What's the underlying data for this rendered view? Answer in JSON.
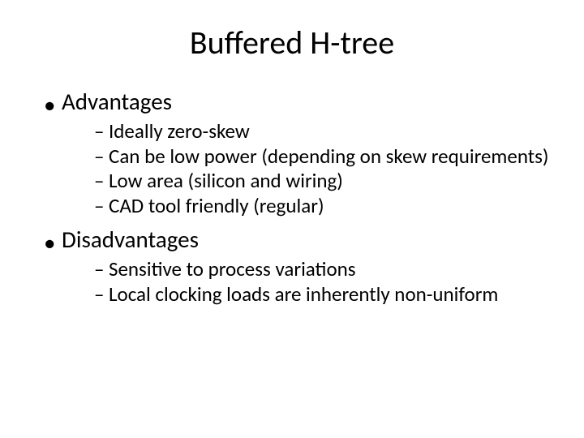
{
  "slide": {
    "title": "Buffered H-tree",
    "title_fontsize": 40,
    "title_color": "#000000",
    "background_color": "#ffffff",
    "text_color": "#000000",
    "l1_fontsize": 29,
    "l2_fontsize": 25,
    "l1_bullet": "•",
    "l2_bullet": "–",
    "sections": [
      {
        "label": "Advantages",
        "items": [
          "Ideally zero-skew",
          "Can be low power (depending on skew requirements)",
          "Low area (silicon and wiring)",
          "CAD tool friendly (regular)"
        ]
      },
      {
        "label": "Disadvantages",
        "items": [
          "Sensitive to process variations",
          "Local clocking loads are inherently non-uniform"
        ]
      }
    ]
  }
}
